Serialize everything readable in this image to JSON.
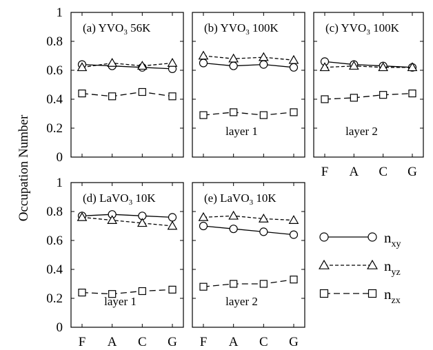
{
  "ylabel": "Occupation Number",
  "yticks": [
    "0",
    "0.2",
    "0.4",
    "0.6",
    "0.8",
    "1"
  ],
  "legend": {
    "position": "right",
    "entries": [
      {
        "base": "n",
        "sub": "xy",
        "marker": "circle",
        "dash": "solid"
      },
      {
        "base": "n",
        "sub": "yz",
        "marker": "triangle",
        "dash": "short-dash"
      },
      {
        "base": "n",
        "sub": "zx",
        "marker": "square",
        "dash": "long-dash"
      }
    ]
  },
  "chart_data": [
    {
      "type": "line",
      "categories": [
        "F",
        "A",
        "C",
        "G"
      ],
      "ylim": [
        0,
        1
      ],
      "title": {
        "pre": "(a) YVO",
        "sub": "3",
        "post": " 56K"
      },
      "note": "",
      "show_xticks": false,
      "show_yticks": true,
      "series": [
        {
          "name": "n_xy",
          "values": [
            0.64,
            0.63,
            0.62,
            0.61
          ]
        },
        {
          "name": "n_yz",
          "values": [
            0.62,
            0.65,
            0.63,
            0.65
          ]
        },
        {
          "name": "n_zx",
          "values": [
            0.44,
            0.42,
            0.45,
            0.42
          ]
        }
      ]
    },
    {
      "type": "line",
      "categories": [
        "F",
        "A",
        "C",
        "G"
      ],
      "ylim": [
        0,
        1
      ],
      "title": {
        "pre": "(b) YVO",
        "sub": "3",
        "post": " 100K"
      },
      "note": "layer 1",
      "show_xticks": false,
      "show_yticks": false,
      "series": [
        {
          "name": "n_xy",
          "values": [
            0.65,
            0.63,
            0.64,
            0.62
          ]
        },
        {
          "name": "n_yz",
          "values": [
            0.7,
            0.68,
            0.69,
            0.67
          ]
        },
        {
          "name": "n_zx",
          "values": [
            0.29,
            0.31,
            0.29,
            0.31
          ]
        }
      ]
    },
    {
      "type": "line",
      "categories": [
        "F",
        "A",
        "C",
        "G"
      ],
      "ylim": [
        0,
        1
      ],
      "title": {
        "pre": "(c) YVO",
        "sub": "3",
        "post": " 100K"
      },
      "note": "layer 2",
      "show_xticks": true,
      "show_yticks": false,
      "series": [
        {
          "name": "n_xy",
          "values": [
            0.66,
            0.64,
            0.63,
            0.62
          ]
        },
        {
          "name": "n_yz",
          "values": [
            0.62,
            0.63,
            0.62,
            0.62
          ]
        },
        {
          "name": "n_zx",
          "values": [
            0.4,
            0.41,
            0.43,
            0.44
          ]
        }
      ]
    },
    {
      "type": "line",
      "categories": [
        "F",
        "A",
        "C",
        "G"
      ],
      "ylim": [
        0,
        1
      ],
      "title": {
        "pre": "(d) LaVO",
        "sub": "3",
        "post": " 10K"
      },
      "note": "layer 1",
      "show_xticks": true,
      "show_yticks": true,
      "series": [
        {
          "name": "n_xy",
          "values": [
            0.77,
            0.78,
            0.77,
            0.76
          ]
        },
        {
          "name": "n_yz",
          "values": [
            0.76,
            0.74,
            0.72,
            0.7
          ]
        },
        {
          "name": "n_zx",
          "values": [
            0.24,
            0.23,
            0.25,
            0.26
          ]
        }
      ]
    },
    {
      "type": "line",
      "categories": [
        "F",
        "A",
        "C",
        "G"
      ],
      "ylim": [
        0,
        1
      ],
      "title": {
        "pre": "(e) LaVO",
        "sub": "3",
        "post": " 10K"
      },
      "note": "layer 2",
      "show_xticks": true,
      "show_yticks": false,
      "series": [
        {
          "name": "n_xy",
          "values": [
            0.7,
            0.68,
            0.66,
            0.64
          ]
        },
        {
          "name": "n_yz",
          "values": [
            0.76,
            0.77,
            0.75,
            0.74
          ]
        },
        {
          "name": "n_zx",
          "values": [
            0.28,
            0.3,
            0.3,
            0.33
          ]
        }
      ]
    }
  ]
}
